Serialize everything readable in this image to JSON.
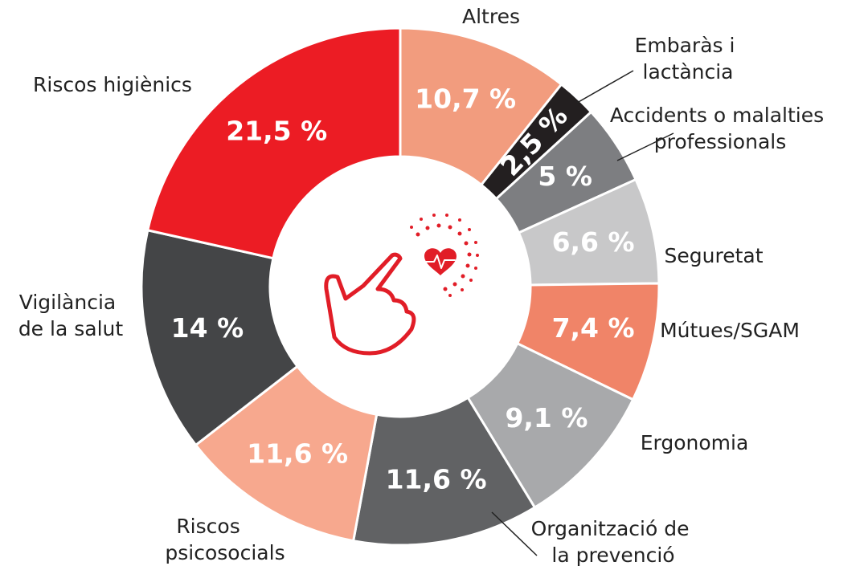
{
  "chart_data": {
    "type": "donut",
    "categories": [
      "Altres",
      "Embaràs i lactància",
      "Accidents o malalties professionals",
      "Seguretat",
      "Mútues/SGAM",
      "Ergonomia",
      "Organització de la prevenció",
      "Riscos psicosocials",
      "Vigilància de la salut",
      "Riscos higiènics"
    ],
    "values": [
      10.7,
      2.5,
      5,
      6.6,
      7.4,
      9.1,
      11.6,
      11.6,
      14,
      21.5
    ],
    "value_labels": [
      "10,7 %",
      "2,5 %",
      "5 %",
      "6,6 %",
      "7,4 %",
      "9,1 %",
      "11,6 %",
      "11,6 %",
      "14 %",
      "21,5 %"
    ],
    "colors": [
      "#f29c7e",
      "#231f20",
      "#7d7e81",
      "#c8c8c9",
      "#f08468",
      "#a8a9ab",
      "#616264",
      "#f7a88e",
      "#444547",
      "#ec1c24"
    ]
  }
}
